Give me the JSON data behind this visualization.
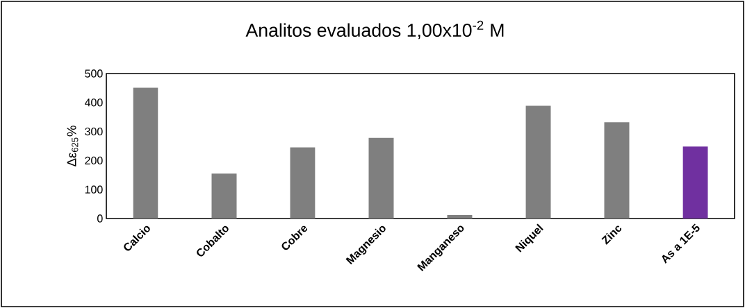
{
  "chart_data": {
    "type": "bar",
    "title": "Analitos evaluados 1,00x10$^{-2}$ M",
    "ylabel": "Δε$_{625}$%",
    "categories": [
      "Calcio",
      "Cobalto",
      "Cobre",
      "Magnesio",
      "Manganeso",
      "Niquel",
      "Zinc",
      "As a 1E-5"
    ],
    "values": [
      451,
      155,
      245,
      278,
      12,
      389,
      332,
      248
    ],
    "colors": [
      "#7f7f7f",
      "#7f7f7f",
      "#7f7f7f",
      "#7f7f7f",
      "#7f7f7f",
      "#7f7f7f",
      "#7f7f7f",
      "#7030a0"
    ],
    "ylim": [
      0,
      500
    ],
    "yticks": [
      0,
      100,
      200,
      300,
      400,
      500
    ]
  }
}
